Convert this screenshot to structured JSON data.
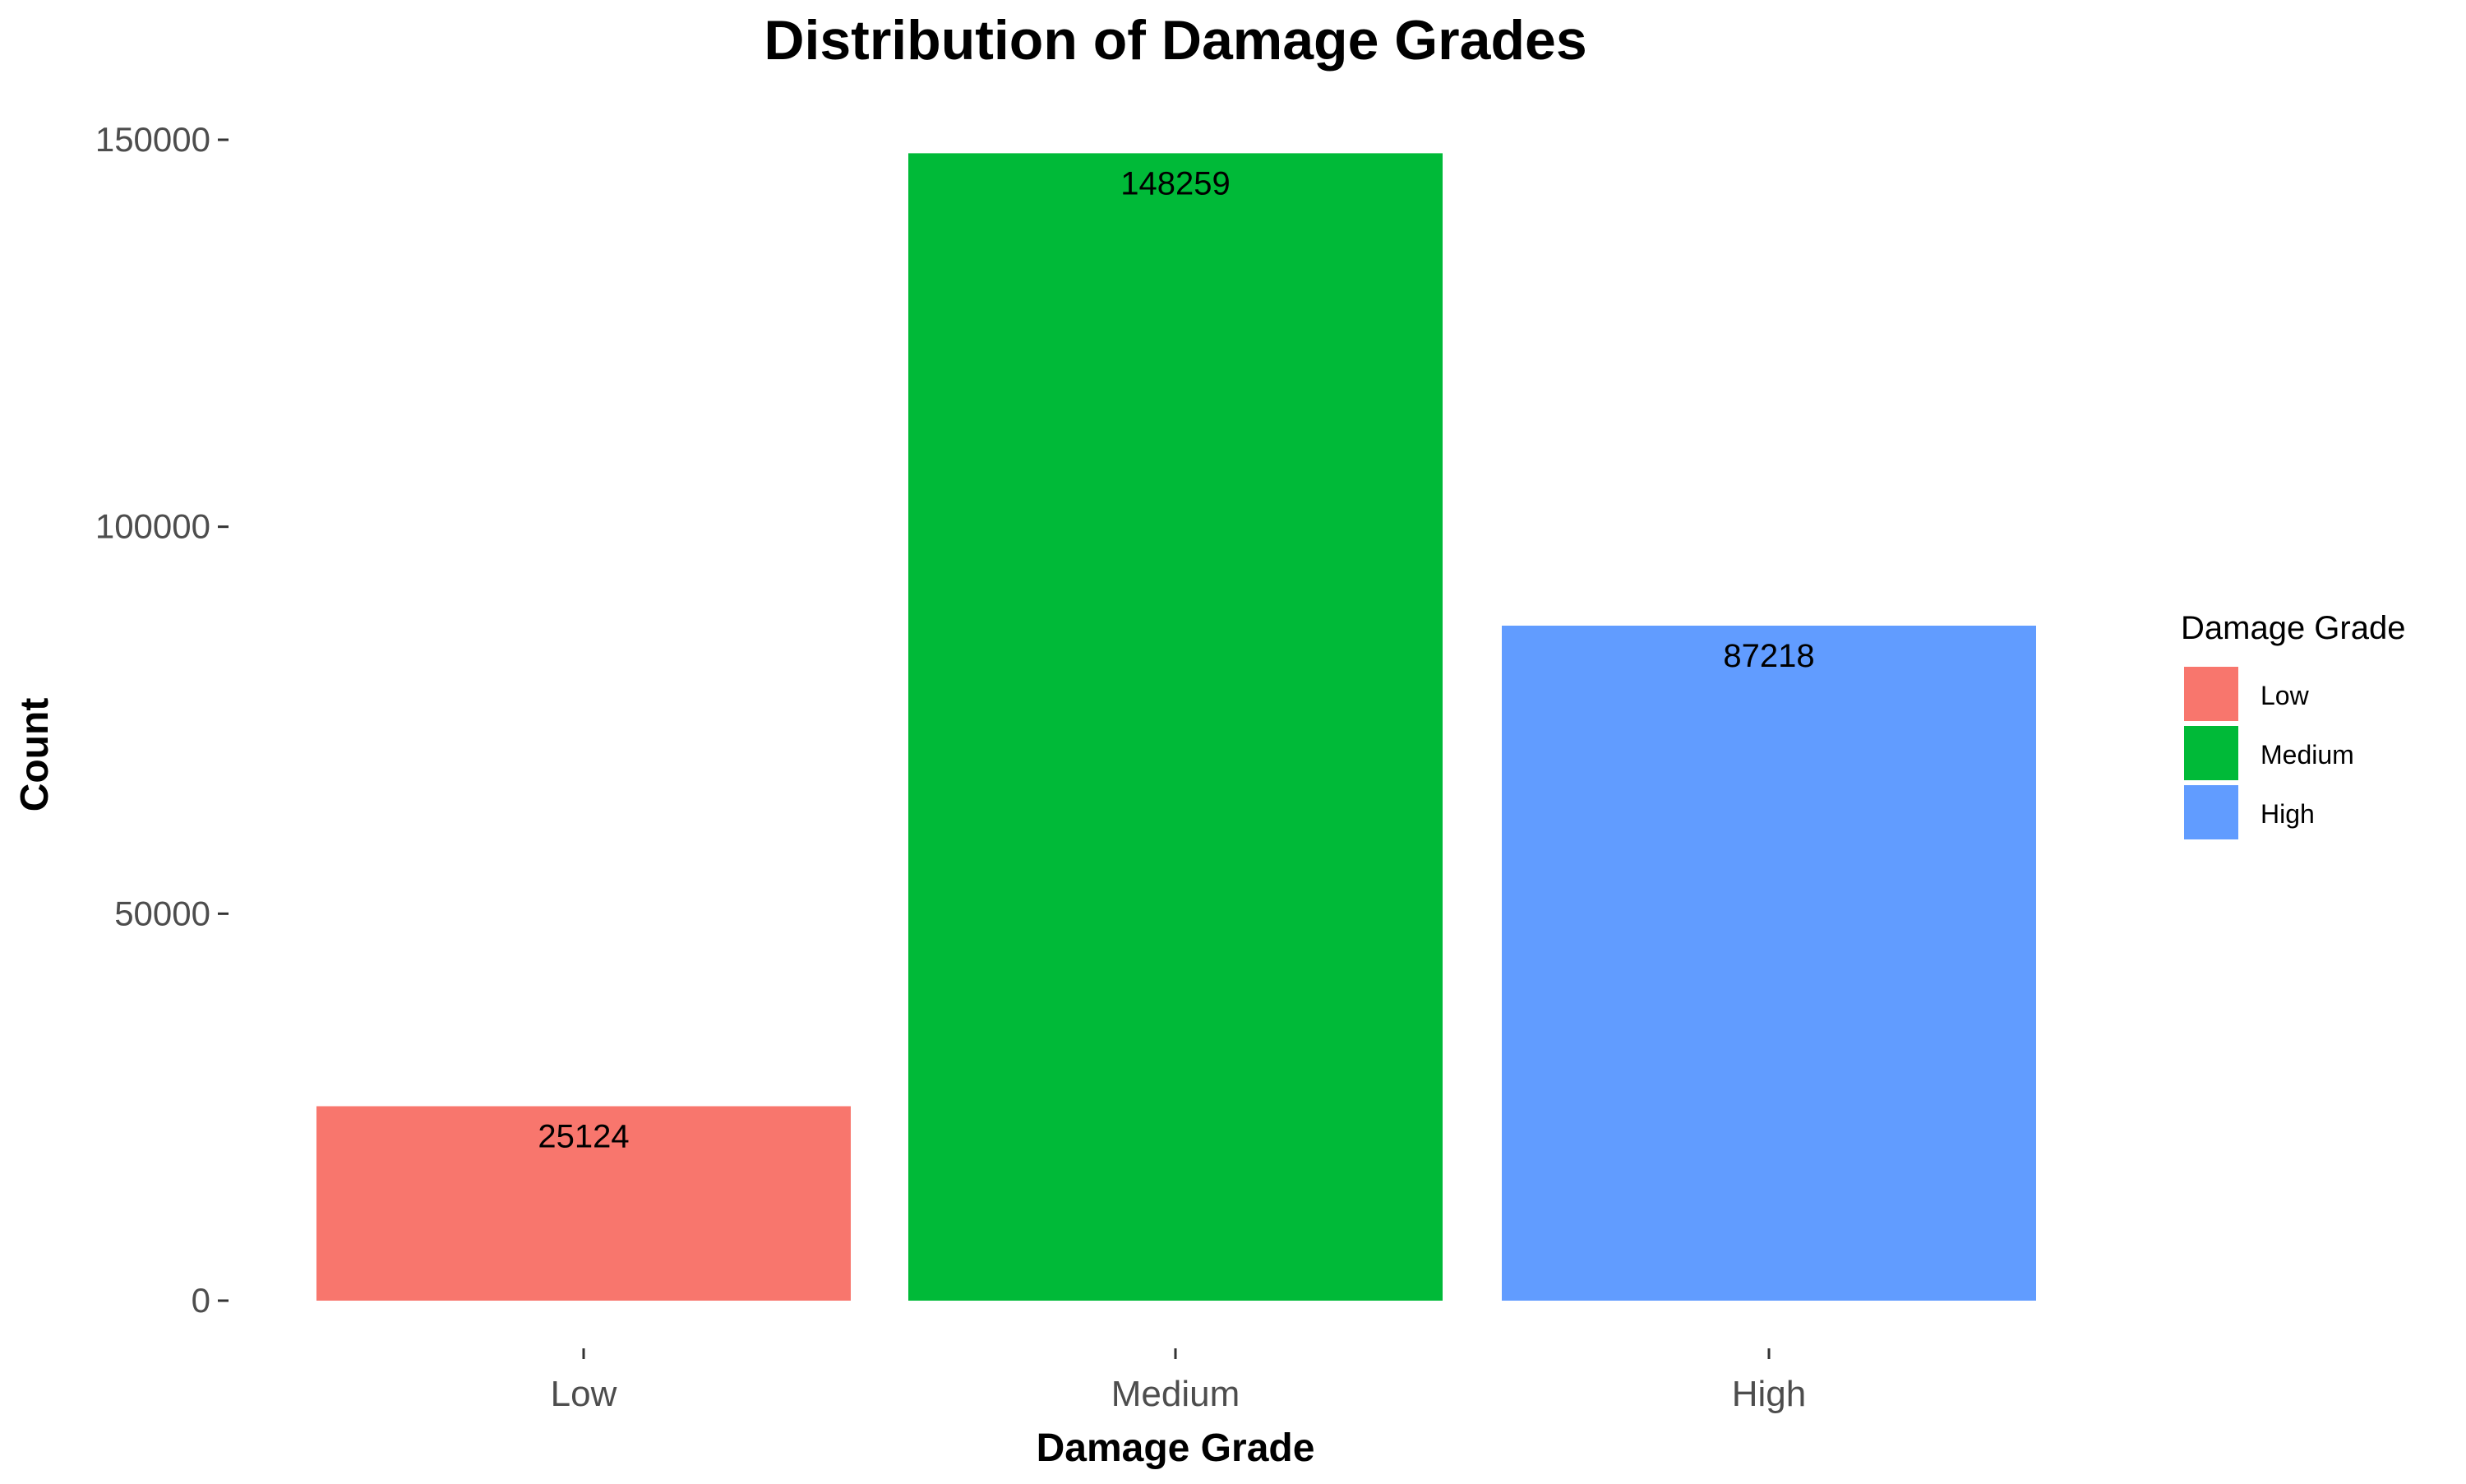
{
  "chart_data": {
    "type": "bar",
    "title": "Distribution of Damage Grades",
    "xlabel": "Damage Grade",
    "ylabel": "Count",
    "categories": [
      "Low",
      "Medium",
      "High"
    ],
    "values": [
      25124,
      148259,
      87218
    ],
    "data_labels": [
      "25124",
      "148259",
      "87218"
    ],
    "colors": [
      "#F8766D",
      "#00BA38",
      "#619CFF"
    ],
    "ylim": [
      0,
      150000
    ],
    "y_ticks": [
      0,
      50000,
      100000,
      150000
    ],
    "y_tick_labels": [
      "0",
      "50000",
      "100000",
      "150000"
    ],
    "grid": false,
    "legend": {
      "title": "Damage Grade",
      "position": "right",
      "entries": [
        "Low",
        "Medium",
        "High"
      ]
    }
  }
}
